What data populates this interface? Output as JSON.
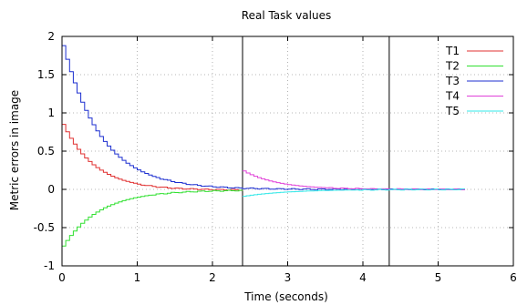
{
  "chart_data": {
    "type": "line",
    "title": "Real Task values",
    "xlabel": "Time (seconds)",
    "ylabel": "Metric errors in image",
    "xlim": [
      0,
      6
    ],
    "ylim": [
      -1,
      2
    ],
    "xticks": [
      0,
      1,
      2,
      3,
      4,
      5,
      6
    ],
    "yticks": [
      -1,
      -0.5,
      0,
      0.5,
      1,
      1.5,
      2
    ],
    "xtick_labels": [
      "0",
      "1",
      "2",
      "3",
      "4",
      "5",
      "6"
    ],
    "ytick_labels": [
      "-1",
      "-0.5",
      "0",
      "0.5",
      "1",
      "1.5",
      "2"
    ],
    "grid": true,
    "legend_position": "top-right",
    "vertical_markers": [
      2.4,
      4.35
    ],
    "series": [
      {
        "name": "T1",
        "color": "#e03030",
        "start": 0,
        "end": 2.4,
        "y0": 0.85,
        "tau": 0.42,
        "offset": -0.01
      },
      {
        "name": "T2",
        "color": "#30e030",
        "start": 0,
        "end": 2.4,
        "y0": -0.74,
        "tau": 0.48,
        "offset": -0.01
      },
      {
        "name": "T3",
        "color": "#1c2fd0",
        "start": 0,
        "end": 5.35,
        "y0": 1.88,
        "tau": 0.5,
        "offset": 0.0
      },
      {
        "name": "T4",
        "color": "#e040d8",
        "start": 2.4,
        "end": 5.35,
        "y0": 0.24,
        "tau": 0.45,
        "offset": 0.0
      },
      {
        "name": "T5",
        "color": "#30e8e8",
        "start": 2.4,
        "end": 5.35,
        "y0": -0.09,
        "tau": 0.6,
        "offset": 0.0
      }
    ]
  }
}
